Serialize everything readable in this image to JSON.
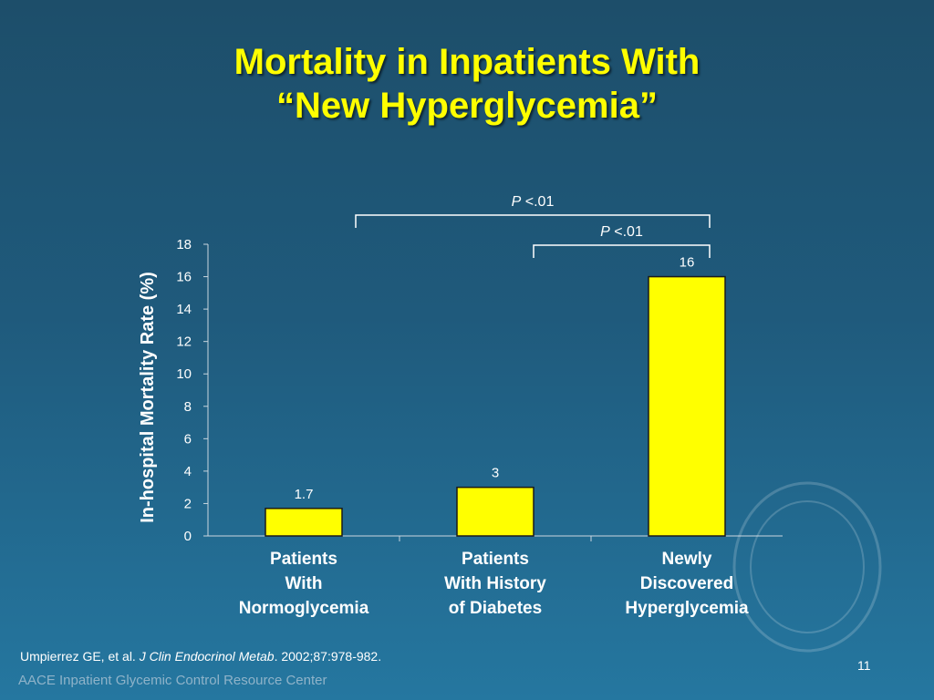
{
  "slide": {
    "title_line1": "Mortality in Inpatients With",
    "title_line2": "“New Hyperglycemia”",
    "citation_authors": "Umpierrez GE, et al. ",
    "citation_journal": "J Clin Endocrinol Metab",
    "citation_details": ". 2002;87:978-982.",
    "org_footer": "AACE Inpatient Glycemic Control Resource Center",
    "slide_number": "11"
  },
  "colors": {
    "bar": "#ffff00",
    "bar_outline": "#1a1a1a",
    "text": "#ffffff",
    "title": "#ffff00"
  },
  "chart_data": {
    "type": "bar",
    "title": "",
    "xlabel": "",
    "ylabel": "In-hospital Mortality Rate (%)",
    "ylim": [
      0,
      18
    ],
    "yticks": [
      0,
      2,
      4,
      6,
      8,
      10,
      12,
      14,
      16,
      18
    ],
    "grid": false,
    "categories": [
      [
        "Patients",
        "With",
        "Normoglycemia"
      ],
      [
        "Patients",
        "With History",
        "of Diabetes"
      ],
      [
        "Newly",
        "Discovered",
        "Hyperglycemia"
      ]
    ],
    "values": [
      1.7,
      3,
      16
    ],
    "data_labels": [
      "1.7",
      "3",
      "16"
    ],
    "annotations": [
      {
        "p_symbol": "P",
        "p_text": " <.01",
        "from_category": 1,
        "to_category": 3
      },
      {
        "p_symbol": "P",
        "p_text": " <.01",
        "from_category": 2,
        "to_category": 3
      }
    ]
  }
}
